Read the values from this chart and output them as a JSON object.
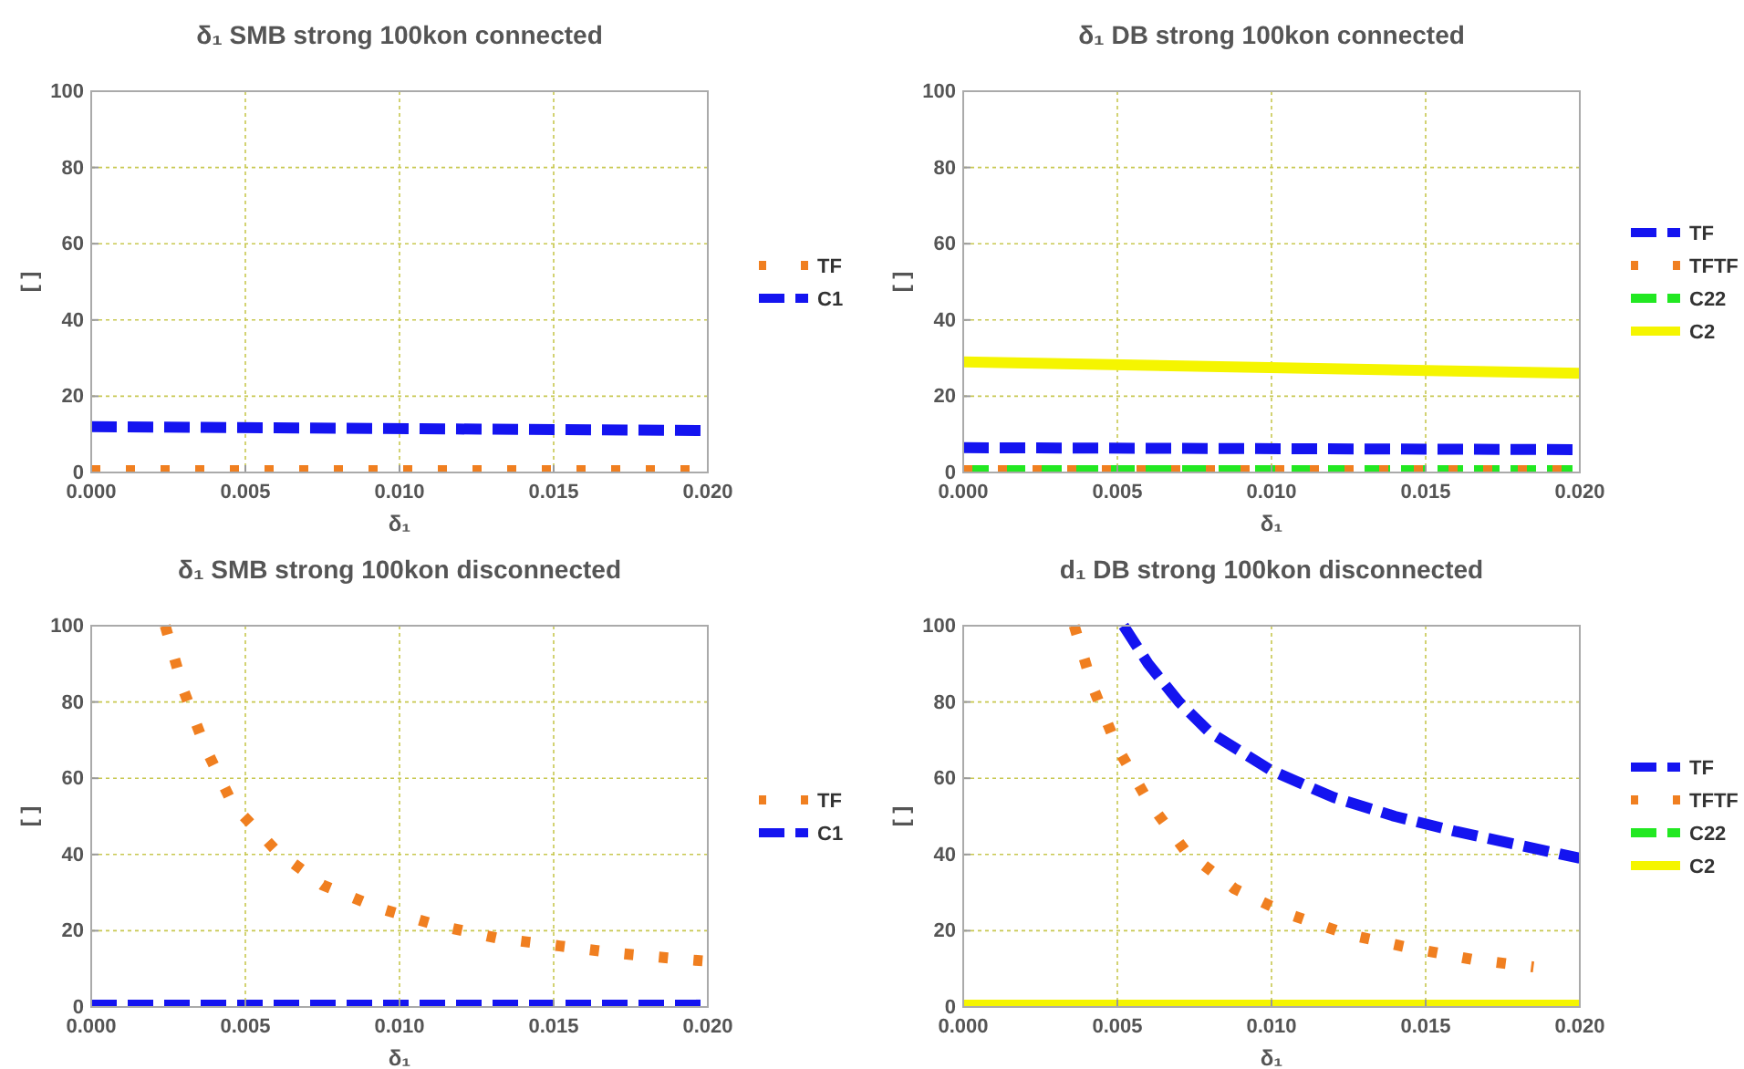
{
  "chart_data": [
    {
      "type": "line",
      "title": "δ₁ SMB strong 100kon connected",
      "xlabel": "δ₁",
      "ylabel": "[ ]",
      "xlim": [
        0,
        0.02
      ],
      "ylim": [
        0,
        100
      ],
      "xticks": [
        {
          "value": 0,
          "label": "0.000"
        },
        {
          "value": 0.005,
          "label": "0.005"
        },
        {
          "value": 0.01,
          "label": "0.010"
        },
        {
          "value": 0.015,
          "label": "0.015"
        },
        {
          "value": 0.02,
          "label": "0.020"
        }
      ],
      "yticks": [
        0,
        20,
        40,
        60,
        80,
        100
      ],
      "grid": true,
      "legend": "right",
      "series": [
        {
          "name": "TF",
          "color": "#f07f20",
          "line_style": "dotted",
          "x": [
            0,
            0.02
          ],
          "values": [
            0.5,
            0.5
          ]
        },
        {
          "name": "C1",
          "color": "#1414f0",
          "line_style": "dashed",
          "x": [
            0,
            0.02
          ],
          "values": [
            12,
            11
          ]
        }
      ]
    },
    {
      "type": "line",
      "title": "δ₁ DB strong 100kon connected",
      "xlabel": "δ₁",
      "ylabel": "[ ]",
      "xlim": [
        0,
        0.02
      ],
      "ylim": [
        0,
        100
      ],
      "xticks": [
        {
          "value": 0,
          "label": "0.000"
        },
        {
          "value": 0.005,
          "label": "0.005"
        },
        {
          "value": 0.01,
          "label": "0.010"
        },
        {
          "value": 0.015,
          "label": "0.015"
        },
        {
          "value": 0.02,
          "label": "0.020"
        }
      ],
      "yticks": [
        0,
        20,
        40,
        60,
        80,
        100
      ],
      "grid": true,
      "legend": "right",
      "series": [
        {
          "name": "TF",
          "color": "#1414f0",
          "line_style": "dashed",
          "x": [
            0,
            0.02
          ],
          "values": [
            6.5,
            6
          ]
        },
        {
          "name": "TFTF",
          "color": "#f07f20",
          "line_style": "dotted",
          "x": [
            0,
            0.02
          ],
          "values": [
            0.5,
            0.5
          ]
        },
        {
          "name": "C22",
          "color": "#22e822",
          "line_style": "dashed",
          "x": [
            0,
            0.02
          ],
          "values": [
            0.5,
            0.5
          ]
        },
        {
          "name": "C2",
          "color": "#f5f500",
          "line_style": "solid",
          "x": [
            0,
            0.02
          ],
          "values": [
            29,
            26
          ]
        }
      ]
    },
    {
      "type": "line",
      "title": "δ₁ SMB strong 100kon disconnected",
      "xlabel": "δ₁",
      "ylabel": "[ ]",
      "xlim": [
        0,
        0.02
      ],
      "ylim": [
        0,
        100
      ],
      "xticks": [
        {
          "value": 0,
          "label": "0.000"
        },
        {
          "value": 0.005,
          "label": "0.005"
        },
        {
          "value": 0.01,
          "label": "0.010"
        },
        {
          "value": 0.015,
          "label": "0.015"
        },
        {
          "value": 0.02,
          "label": "0.020"
        }
      ],
      "yticks": [
        0,
        20,
        40,
        60,
        80,
        100
      ],
      "grid": true,
      "legend": "right",
      "series": [
        {
          "name": "TF",
          "color": "#f07f20",
          "line_style": "dotted",
          "x": [
            0.0024,
            0.003,
            0.0037,
            0.0046,
            0.006,
            0.0075,
            0.0093,
            0.0112,
            0.0132,
            0.0152,
            0.0172,
            0.0192,
            0.02
          ],
          "values": [
            100,
            83,
            68,
            53,
            41,
            32,
            26,
            21.5,
            18,
            16,
            14,
            12.5,
            12
          ]
        },
        {
          "name": "C1",
          "color": "#1414f0",
          "line_style": "dashed",
          "x": [
            0,
            0.02
          ],
          "values": [
            0.5,
            0.5
          ]
        }
      ]
    },
    {
      "type": "line",
      "title": "d₁ DB strong 100kon disconnected",
      "xlabel": "δ₁",
      "ylabel": "[ ]",
      "xlim": [
        0,
        0.02
      ],
      "ylim": [
        0,
        100
      ],
      "xticks": [
        {
          "value": 0,
          "label": "0.000"
        },
        {
          "value": 0.005,
          "label": "0.005"
        },
        {
          "value": 0.01,
          "label": "0.010"
        },
        {
          "value": 0.015,
          "label": "0.015"
        },
        {
          "value": 0.02,
          "label": "0.020"
        }
      ],
      "yticks": [
        0,
        20,
        40,
        60,
        80,
        100
      ],
      "grid": true,
      "legend": "right",
      "series": [
        {
          "name": "TF",
          "color": "#1414f0",
          "line_style": "dashed",
          "x": [
            0.0052,
            0.006,
            0.007,
            0.008,
            0.009,
            0.01,
            0.012,
            0.014,
            0.016,
            0.018,
            0.02
          ],
          "values": [
            100,
            90,
            80,
            72,
            67,
            62,
            55,
            50,
            46,
            42.5,
            39
          ]
        },
        {
          "name": "TFTF",
          "color": "#f07f20",
          "line_style": "dotted",
          "x": [
            0.0036,
            0.0042,
            0.005,
            0.006,
            0.0072,
            0.0088,
            0.0105,
            0.0125,
            0.0145,
            0.0165,
            0.0185
          ],
          "values": [
            100,
            84,
            68,
            54,
            41,
            31,
            24.5,
            19,
            15.5,
            12.5,
            10.5
          ]
        },
        {
          "name": "C22",
          "color": "#22e822",
          "line_style": "dashed"
        },
        {
          "name": "C2",
          "color": "#f5f500",
          "line_style": "solid",
          "x": [
            0,
            0.02
          ],
          "values": [
            0.5,
            0.5
          ]
        }
      ]
    }
  ]
}
